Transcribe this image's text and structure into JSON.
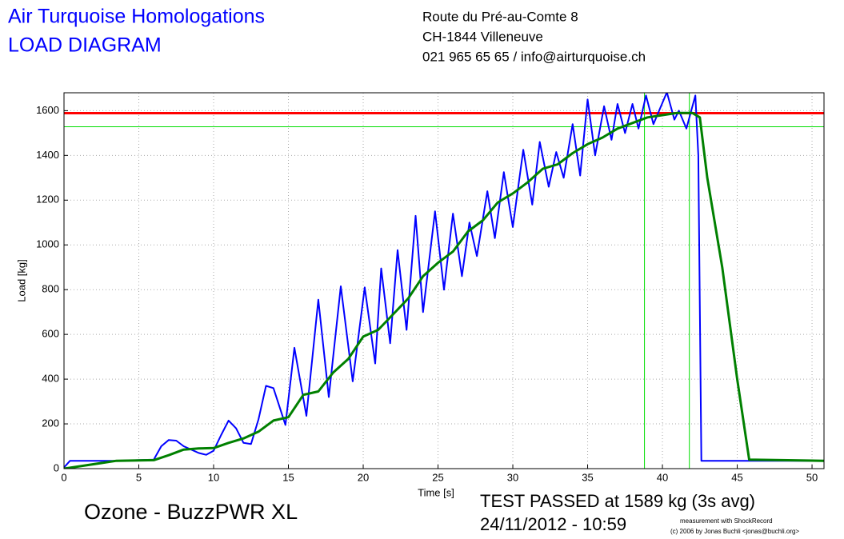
{
  "chart_data": {
    "type": "line",
    "title": "Air Turquoise Homologations",
    "subtitle": "LOAD DIAGRAM",
    "address": [
      "Route du Pré-au-Comte 8",
      "CH-1844 Villeneuve",
      "021 965 65 65 / info@airturquoise.ch"
    ],
    "xlabel": "Time [s]",
    "ylabel": "Load [kg]",
    "annotations": [
      "Ozone - BuzzPWR XL",
      "TEST PASSED at 1589 kg (3s avg)",
      "24/11/2012 - 10:59",
      "measurement with ShockRecord",
      "(c) 2006 by Jonas Buchli <jonas@buchli.org>"
    ],
    "xlim": [
      0,
      50.8
    ],
    "ylim": [
      0,
      1680
    ],
    "xticks": [
      0,
      5,
      10,
      15,
      20,
      25,
      30,
      35,
      40,
      45,
      50
    ],
    "yticks": [
      0,
      200,
      400,
      600,
      800,
      1000,
      1200,
      1400,
      1600
    ],
    "grid": true,
    "series": [
      {
        "color": "#0000ff",
        "x": [
          0,
          0.4,
          3.5,
          6,
          6.5,
          7,
          7.5,
          8,
          8.5,
          9,
          9.5,
          10,
          10.5,
          11,
          11.5,
          12,
          12.5,
          13,
          13.5,
          14,
          14.8,
          15.4,
          16.2,
          17,
          17.7,
          18.5,
          19.3,
          20.1,
          20.8,
          21.2,
          21.8,
          22.3,
          22.9,
          23.5,
          24,
          24.8,
          25.4,
          26,
          26.6,
          27.1,
          27.6,
          28.3,
          28.8,
          29.4,
          30,
          30.7,
          31.3,
          31.8,
          32.4,
          32.9,
          33.4,
          34,
          34.5,
          35,
          35.5,
          36.1,
          36.6,
          37,
          37.5,
          38,
          38.4,
          38.9,
          39.4,
          40.3,
          40.8,
          41.1,
          41.6,
          42.2,
          42.4,
          42.6,
          50.8
        ],
        "values": [
          5,
          35,
          35,
          40,
          100,
          128,
          125,
          100,
          85,
          70,
          62,
          80,
          150,
          215,
          180,
          115,
          110,
          220,
          370,
          360,
          195,
          540,
          236,
          755,
          320,
          815,
          390,
          810,
          470,
          895,
          560,
          977,
          620,
          1130,
          700,
          1150,
          800,
          1140,
          860,
          1100,
          950,
          1240,
          1030,
          1325,
          1080,
          1425,
          1180,
          1460,
          1260,
          1415,
          1300,
          1540,
          1310,
          1650,
          1400,
          1620,
          1470,
          1630,
          1500,
          1630,
          1520,
          1668,
          1540,
          1682,
          1560,
          1600,
          1520,
          1668,
          1400,
          35,
          35
        ]
      },
      {
        "color": "#008000",
        "x": [
          0,
          3.5,
          6,
          7,
          8,
          9,
          10,
          11,
          12,
          13,
          14,
          15,
          16,
          17,
          18,
          19,
          20,
          21,
          22,
          23,
          24,
          25,
          26,
          27,
          28,
          29,
          30,
          31,
          32,
          33,
          34,
          35,
          36,
          37,
          38,
          39,
          40,
          41,
          42,
          42.5,
          43,
          44,
          45,
          45.8,
          50.8
        ],
        "values": [
          0,
          35,
          38,
          60,
          85,
          90,
          92,
          115,
          135,
          165,
          215,
          230,
          330,
          345,
          430,
          490,
          590,
          620,
          690,
          760,
          860,
          920,
          970,
          1060,
          1110,
          1190,
          1230,
          1280,
          1340,
          1360,
          1410,
          1450,
          1480,
          1520,
          1545,
          1570,
          1580,
          1590,
          1590,
          1570,
          1300,
          900,
          400,
          40,
          35
        ]
      }
    ],
    "reference_lines": [
      {
        "axis": "y",
        "value": 1589,
        "color": "#ff0000"
      },
      {
        "axis": "y",
        "value": 1528,
        "color": "#00dd00"
      },
      {
        "axis": "x",
        "value": 38.8,
        "color": "#00dd00"
      },
      {
        "axis": "x",
        "value": 41.8,
        "color": "#00dd00"
      }
    ]
  }
}
